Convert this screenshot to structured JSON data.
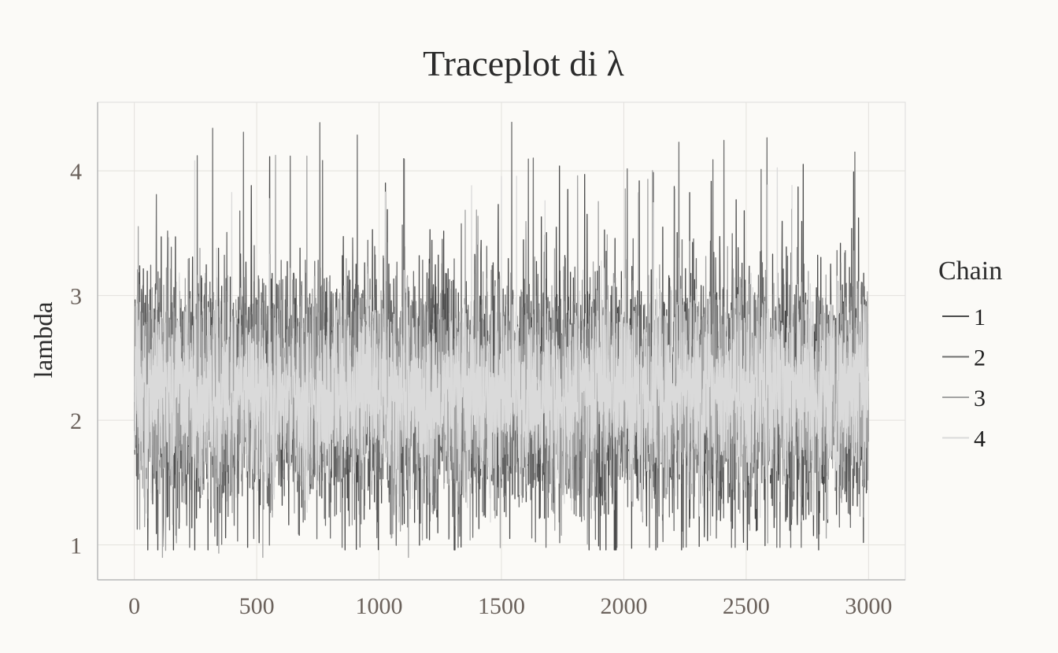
{
  "chart_data": {
    "type": "line",
    "title": "Traceplot di λ",
    "xlabel": "",
    "ylabel": "lambda",
    "xlim": [
      -150,
      3150
    ],
    "ylim": [
      0.72,
      4.55
    ],
    "xticks": [
      0,
      500,
      1000,
      1500,
      2000,
      2500,
      3000
    ],
    "xtick_labels": [
      "0",
      "500",
      "1000",
      "1500",
      "2000",
      "2500",
      "3000"
    ],
    "yticks": [
      1,
      2,
      3,
      4
    ],
    "ytick_labels": [
      "1",
      "2",
      "3",
      "4"
    ],
    "grid": true,
    "legend": {
      "title": "Chain",
      "position": "right"
    },
    "draws_per_chain": 3000,
    "series": [
      {
        "name": "1",
        "color": "#4a4a4a",
        "mean": 2.22,
        "sd": 0.52,
        "min": 0.96,
        "max": 4.14
      },
      {
        "name": "2",
        "color": "#6e6e6e",
        "mean": 2.22,
        "sd": 0.49,
        "min": 0.98,
        "max": 4.4
      },
      {
        "name": "3",
        "color": "#a3a3a3",
        "mean": 2.22,
        "sd": 0.44,
        "min": 0.9,
        "max": 4.26
      },
      {
        "name": "4",
        "color": "#dadada",
        "mean": 2.22,
        "sd": 0.36,
        "min": 0.9,
        "max": 4.1
      }
    ]
  }
}
